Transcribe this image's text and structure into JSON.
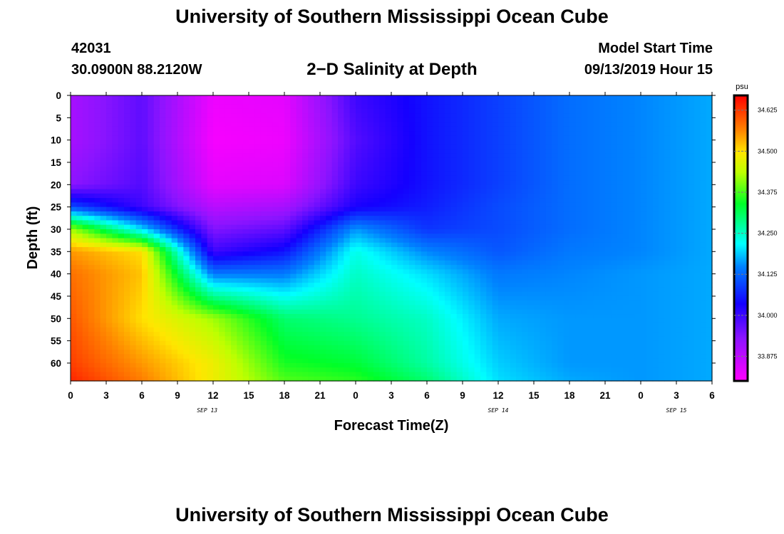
{
  "header": {
    "title": "University of Southern Mississippi Ocean Cube",
    "station_id": "42031",
    "station_coords": "30.0900N 88.2120W",
    "plot_title": "2−D Salinity at Depth",
    "model_start_label": "Model Start Time",
    "model_start_value": "09/13/2019 Hour 15"
  },
  "footer": {
    "title": "University of Southern Mississippi Ocean Cube"
  },
  "chart_data": {
    "type": "heatmap",
    "title": "2−D Salinity at Depth",
    "xlabel": "Forecast Time(Z)",
    "ylabel": "Depth (ft)",
    "x_tick_labels": [
      "0",
      "3",
      "6",
      "9",
      "12",
      "15",
      "18",
      "21",
      "0",
      "3",
      "6",
      "9",
      "12",
      "15",
      "18",
      "21",
      "0",
      "3",
      "6"
    ],
    "x_hours": [
      0,
      3,
      6,
      9,
      12,
      15,
      18,
      21,
      24,
      27,
      30,
      33,
      36,
      39,
      42,
      45,
      48,
      51,
      54
    ],
    "x_range_hours": [
      0,
      54
    ],
    "date_labels": [
      {
        "text": "SEP 13",
        "hour": 11.5
      },
      {
        "text": "SEP 14",
        "hour": 36
      },
      {
        "text": "SEP 15",
        "hour": 51
      }
    ],
    "y_ticks": [
      0,
      5,
      10,
      15,
      20,
      25,
      30,
      35,
      40,
      45,
      50,
      55,
      60
    ],
    "y_range_ft": [
      0,
      64
    ],
    "colorbar": {
      "unit": "psu",
      "range": [
        33.8,
        34.67
      ],
      "tick_values": [
        33.875,
        34.0,
        34.125,
        34.25,
        34.375,
        34.5,
        34.625
      ],
      "tick_labels": [
        "33.875",
        "34.000",
        "34.125",
        "34.250",
        "34.375",
        "34.500",
        "34.625"
      ]
    },
    "grid_hours": [
      0,
      6,
      12,
      18,
      24,
      30,
      36,
      42,
      48,
      54
    ],
    "grid_depths_ft": [
      0,
      10,
      20,
      25,
      30,
      35,
      40,
      50,
      60,
      64
    ],
    "salinity_psu": [
      [
        33.9,
        33.97,
        33.82,
        33.83,
        34.0,
        34.05,
        34.09,
        34.13,
        34.15,
        34.17
      ],
      [
        33.9,
        33.97,
        33.81,
        33.82,
        33.98,
        34.05,
        34.09,
        34.13,
        34.15,
        34.17
      ],
      [
        33.93,
        33.98,
        33.83,
        33.84,
        34.0,
        34.05,
        34.09,
        34.13,
        34.15,
        34.17
      ],
      [
        34.1,
        34.0,
        33.88,
        33.9,
        34.03,
        34.06,
        34.1,
        34.13,
        34.15,
        34.17
      ],
      [
        34.42,
        34.2,
        33.94,
        33.97,
        34.16,
        34.08,
        34.1,
        34.13,
        34.15,
        34.17
      ],
      [
        34.55,
        34.5,
        34.0,
        34.05,
        34.23,
        34.15,
        34.11,
        34.14,
        34.15,
        34.17
      ],
      [
        34.58,
        34.52,
        34.14,
        34.14,
        34.25,
        34.2,
        34.14,
        34.15,
        34.16,
        34.17
      ],
      [
        34.6,
        34.5,
        34.42,
        34.3,
        34.28,
        34.25,
        34.17,
        34.16,
        34.16,
        34.17
      ],
      [
        34.62,
        34.55,
        34.48,
        34.35,
        34.33,
        34.27,
        34.19,
        34.16,
        34.16,
        34.17
      ],
      [
        34.64,
        34.57,
        34.48,
        34.38,
        34.36,
        34.3,
        34.2,
        34.17,
        34.16,
        34.17
      ]
    ]
  }
}
